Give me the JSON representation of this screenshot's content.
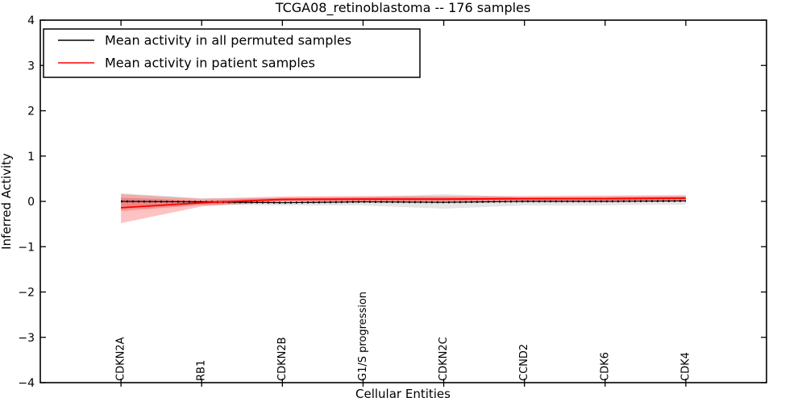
{
  "figure": {
    "background": "#ffffff",
    "frame_color": "#000000"
  },
  "chart_data": {
    "type": "line",
    "title": "TCGA08_retinoblastoma -- 176 samples",
    "xlabel": "Cellular Entities",
    "ylabel": "Inferred Activity",
    "ylim": [
      -4,
      4
    ],
    "ytick_values": [
      4,
      3,
      2,
      1,
      0,
      -1,
      -2,
      -3,
      -4
    ],
    "ytick_labels": [
      "4",
      "3",
      "2",
      "1",
      "0",
      "−1",
      "−2",
      "−3",
      "−4"
    ],
    "categories": [
      "CDKN2A",
      "RB1",
      "CDKN2B",
      "G1/S progression",
      "CDKN2C",
      "CCND2",
      "CDK6",
      "CDK4"
    ],
    "grid": false,
    "legend_position": "upper left",
    "legend": [
      {
        "label": "Mean activity in all permuted samples",
        "color": "#000000"
      },
      {
        "label": "Mean activity in patient samples",
        "color": "#ff0000"
      }
    ],
    "series": [
      {
        "name": "Mean activity in all permuted samples",
        "color": "#000000",
        "style": "dash-marker",
        "values": [
          0.0,
          -0.01,
          -0.03,
          -0.01,
          -0.02,
          0.0,
          0.0,
          0.01
        ],
        "band": {
          "color": "rgba(0,0,0,0.10)",
          "upper": [
            0.18,
            0.07,
            0.07,
            0.09,
            0.16,
            0.09,
            0.09,
            0.11
          ],
          "lower": [
            -0.16,
            -0.07,
            -0.09,
            -0.09,
            -0.16,
            -0.09,
            -0.09,
            -0.07
          ]
        }
      },
      {
        "name": "Mean activity in patient samples",
        "color": "#ff0000",
        "style": "solid",
        "values": [
          -0.14,
          -0.03,
          0.045,
          0.05,
          0.05,
          0.06,
          0.06,
          0.07
        ],
        "band_outer": {
          "color": "rgba(255,0,0,0.24)",
          "upper": [
            0.16,
            0.06,
            0.11,
            0.12,
            0.12,
            0.12,
            0.13,
            0.14
          ],
          "lower": [
            -0.48,
            -0.11,
            -0.01,
            0.0,
            0.0,
            0.0,
            0.0,
            0.01
          ]
        },
        "band_inner": {
          "color": "rgba(255,0,0,0.24)",
          "upper": [
            0.08,
            0.02,
            0.08,
            0.09,
            0.09,
            0.09,
            0.1,
            0.11
          ],
          "lower": [
            -0.21,
            -0.08,
            0.0,
            0.01,
            0.01,
            0.02,
            0.02,
            0.03
          ]
        }
      }
    ]
  }
}
